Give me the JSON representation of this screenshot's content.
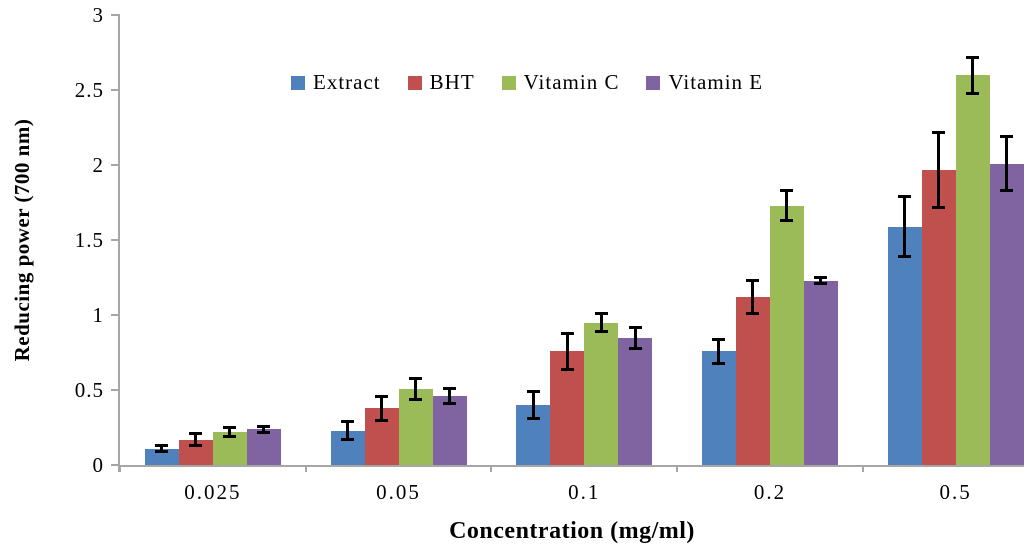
{
  "chart_data": {
    "type": "bar",
    "title": "",
    "xlabel": "Concentration (mg/ml)",
    "ylabel": "Reducing power (700 nm)",
    "categories": [
      "0.025",
      "0.05",
      "0.1",
      "0.2",
      "0.5"
    ],
    "series": [
      {
        "name": "Extract",
        "color": "#4F81BD",
        "values": [
          0.11,
          0.23,
          0.4,
          0.76,
          1.59
        ],
        "errors": [
          0.02,
          0.06,
          0.09,
          0.08,
          0.2
        ]
      },
      {
        "name": "BHT",
        "color": "#C0504D",
        "values": [
          0.17,
          0.38,
          0.76,
          1.12,
          1.97
        ],
        "errors": [
          0.04,
          0.08,
          0.12,
          0.11,
          0.25
        ]
      },
      {
        "name": "Vitamin C",
        "color": "#9BBB59",
        "values": [
          0.22,
          0.51,
          0.95,
          1.73,
          2.6
        ],
        "errors": [
          0.03,
          0.07,
          0.06,
          0.1,
          0.12
        ]
      },
      {
        "name": "Vitamin E",
        "color": "#8064A2",
        "values": [
          0.24,
          0.46,
          0.85,
          1.23,
          2.01
        ],
        "errors": [
          0.02,
          0.05,
          0.07,
          0.02,
          0.18
        ]
      }
    ],
    "ylim": [
      0,
      3
    ],
    "ytick_step": 0.5,
    "ytick_labels": [
      "0",
      "0.5",
      "1",
      "1.5",
      "2",
      "2.5",
      "3"
    ],
    "grid": false,
    "legend_position": "top-center",
    "error_bars": true,
    "axis_color": "#a6a6a6",
    "error_bar_color": "#000000",
    "background_color": "#ffffff"
  }
}
